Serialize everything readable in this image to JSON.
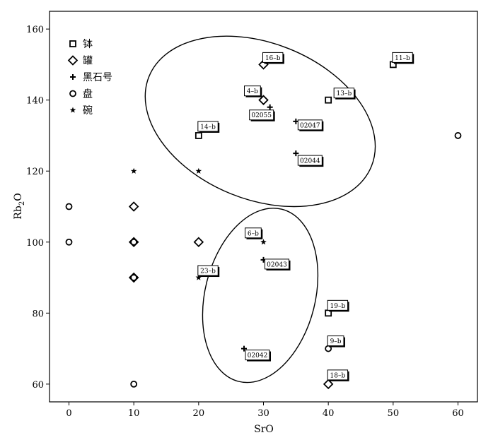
{
  "chart_data": {
    "type": "scatter",
    "xlabel": "SrO",
    "ylabel": "Rb",
    "ylabel_sub": "2",
    "ylabel_suffix": "O",
    "xlim": [
      -3,
      63
    ],
    "ylim": [
      55,
      165
    ],
    "xticks": [
      0,
      10,
      20,
      30,
      40,
      50,
      60
    ],
    "yticks": [
      60,
      80,
      100,
      120,
      140,
      160
    ],
    "grid": false,
    "legend_position": "top-left",
    "series": [
      {
        "name": "钵",
        "marker": "square",
        "points": [
          [
            20,
            130
          ],
          [
            40,
            140
          ],
          [
            50,
            150
          ],
          [
            40,
            80
          ]
        ]
      },
      {
        "name": "罐",
        "marker": "diamond",
        "points": [
          [
            30,
            150
          ],
          [
            30,
            140
          ],
          [
            10,
            110
          ],
          [
            10,
            100
          ],
          [
            20,
            100
          ],
          [
            10,
            90
          ],
          [
            40,
            60
          ]
        ]
      },
      {
        "name": "黑石号",
        "marker": "plus",
        "points": [
          [
            31,
            138
          ],
          [
            35,
            134
          ],
          [
            35,
            125
          ],
          [
            30,
            95
          ],
          [
            27,
            70
          ]
        ]
      },
      {
        "name": "盘",
        "marker": "circle",
        "points": [
          [
            60,
            130
          ],
          [
            0,
            110
          ],
          [
            0,
            100
          ],
          [
            10,
            100
          ],
          [
            10,
            90
          ],
          [
            40,
            70
          ],
          [
            10,
            60
          ]
        ]
      },
      {
        "name": "碗",
        "marker": "star",
        "points": [
          [
            10,
            120
          ],
          [
            20,
            120
          ],
          [
            30,
            100
          ],
          [
            20,
            90
          ]
        ]
      }
    ],
    "annotations": [
      {
        "text": "16–b",
        "at": [
          30,
          150
        ]
      },
      {
        "text": "11–b",
        "at": [
          50,
          150
        ]
      },
      {
        "text": "4–b",
        "at": [
          30,
          140
        ]
      },
      {
        "text": "13–b",
        "at": [
          40,
          140
        ]
      },
      {
        "text": "02055",
        "at": [
          31,
          138
        ]
      },
      {
        "text": "02047",
        "at": [
          35,
          134
        ]
      },
      {
        "text": "14–b",
        "at": [
          20,
          130
        ]
      },
      {
        "text": "02044",
        "at": [
          35,
          125
        ]
      },
      {
        "text": "6–b",
        "at": [
          30,
          100
        ]
      },
      {
        "text": "02043",
        "at": [
          30,
          95
        ]
      },
      {
        "text": "23–b",
        "at": [
          20,
          90
        ]
      },
      {
        "text": "19–b",
        "at": [
          40,
          80
        ]
      },
      {
        "text": "9–b",
        "at": [
          40,
          70
        ]
      },
      {
        "text": "02042",
        "at": [
          27,
          70
        ]
      },
      {
        "text": "18–b",
        "at": [
          40,
          60
        ]
      }
    ],
    "ellipses": [
      {
        "center": [
          29.5,
          134
        ],
        "radii": [
          18.5,
          22
        ],
        "rotation": 22
      },
      {
        "center": [
          29.5,
          85
        ],
        "radii": [
          8.5,
          25
        ],
        "rotation": 14
      }
    ]
  }
}
